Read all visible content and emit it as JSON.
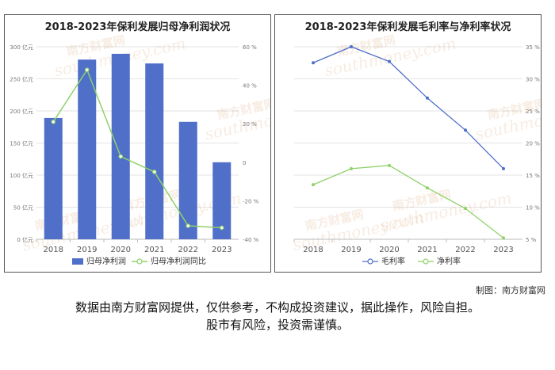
{
  "chart_data": [
    {
      "type": "bar",
      "title": "2018-2023年保利发展归母净利润状况",
      "categories": [
        "2018",
        "2019",
        "2020",
        "2021",
        "2022",
        "2023"
      ],
      "series": [
        {
          "name": "归母净利润",
          "type": "bar",
          "axis": "left",
          "values": [
            189,
            280,
            289,
            274,
            183,
            120
          ]
        },
        {
          "name": "归母净利润同比",
          "type": "line",
          "axis": "right",
          "values": [
            21,
            48,
            3,
            -5,
            -33,
            -34
          ]
        }
      ],
      "left_axis": {
        "ticks": [
          "0 亿元",
          "50 亿元",
          "100 亿元",
          "150 亿元",
          "200 亿元",
          "250 亿元",
          "300 亿元"
        ],
        "range": [
          0,
          300
        ]
      },
      "right_axis": {
        "ticks": [
          "-40 %",
          "-20 %",
          "0",
          "20 %",
          "40 %",
          "60 %"
        ],
        "range": [
          -40,
          60
        ]
      },
      "legend": "bottom",
      "colors": {
        "bar": "#4f6fc9",
        "line": "#8fd16a"
      }
    },
    {
      "type": "line",
      "title": "2018-2023年保利发展毛利率与净利率状况",
      "categories": [
        "2018",
        "2019",
        "2020",
        "2021",
        "2022",
        "2023"
      ],
      "series": [
        {
          "name": "毛利率",
          "values": [
            32.5,
            35,
            32.7,
            27,
            22,
            16
          ]
        },
        {
          "name": "净利率",
          "values": [
            13.5,
            16,
            16.5,
            13,
            9.8,
            5.2
          ]
        }
      ],
      "right_axis": {
        "ticks": [
          "5 %",
          "10 %",
          "15 %",
          "20 %",
          "25 %",
          "30 %",
          "35 %"
        ],
        "range": [
          5,
          35
        ]
      },
      "legend": "bottom",
      "colors": {
        "毛利率": "#4f6fc9",
        "净利率": "#8fd16a"
      }
    }
  ],
  "watermark": {
    "cn": "南方财富网",
    "en": "southmoney.com"
  },
  "credit": "制图：南方财富网",
  "disclaimer_line1": "数据由南方财富网提供，仅供参考，不构成投资建议，据此操作，风险自担。",
  "disclaimer_line2": "股市有风险，投资需谨慎。"
}
